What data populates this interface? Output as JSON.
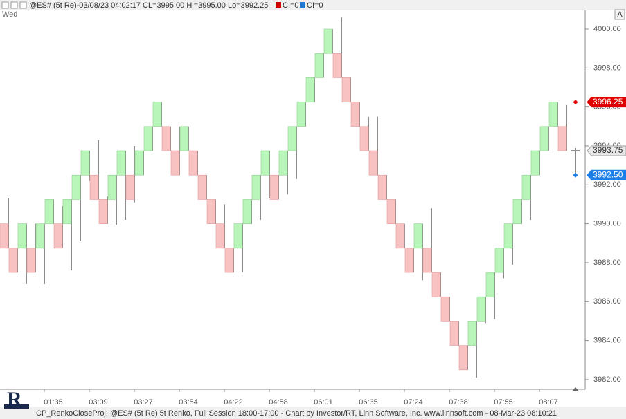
{
  "chart_data": {
    "type": "candlestick",
    "header": {
      "title": "@ES# (5t Re)-03/08/23 04:02:17 CL=3995.00 Hi=3995.00 Lo=3992.25",
      "items": [
        {
          "label": "CI=0",
          "color": "#d00000"
        },
        {
          "label": "CI=0",
          "color": "#1e78d8"
        }
      ]
    },
    "day_label": "Wed",
    "corner_button": "A",
    "footer": "CP_RenkoCloseProj: @ES# (5t Re) 5t Renko, Full Session 18:00-17:00 - Chart by Investor/RT, Linn Software, Inc. www.linnsoft.com - 08-Mar-23 08:10:21",
    "up_color": "#b8f5b8",
    "down_color": "#f8c2c2",
    "categories": [
      null,
      null,
      null,
      null,
      null,
      "01:35",
      null,
      null,
      null,
      null,
      "03:09",
      null,
      null,
      null,
      null,
      "03:27",
      null,
      null,
      null,
      null,
      "03:54",
      null,
      null,
      null,
      null,
      "04:22",
      null,
      null,
      null,
      null,
      "04:58",
      null,
      null,
      null,
      null,
      "06:01",
      null,
      null,
      null,
      null,
      "06:35",
      null,
      null,
      null,
      null,
      "07:24",
      null,
      null,
      null,
      null,
      "07:38",
      null,
      null,
      null,
      null,
      "07:55",
      null,
      null,
      null,
      null,
      "08:07",
      null,
      null,
      null
    ],
    "open": [
      3990,
      3988.75,
      3988.75,
      3988.75,
      3988.75,
      3990,
      3990,
      3990,
      3991.25,
      3992.5,
      3992.5,
      3991.25,
      3991.25,
      3992.5,
      3992.5,
      3992.5,
      3993.75,
      3995,
      3995,
      3993.75,
      3993.75,
      3993.75,
      3992.5,
      3991.25,
      3990,
      3988.75,
      3988.75,
      3990,
      3991.25,
      3992.5,
      3992.5,
      3992.5,
      3993.75,
      3995,
      3996.25,
      3997.5,
      3998.75,
      3998.75,
      3997.5,
      3996.25,
      3995,
      3993.75,
      3992.5,
      3991.25,
      3990,
      3988.75,
      3988.75,
      3988.75,
      3987.5,
      3986.25,
      3985,
      3983.75,
      3983.75,
      3985,
      3986.25,
      3987.5,
      3988.75,
      3990,
      3991.25,
      3992.5,
      3993.75,
      3995,
      3995,
      3993.75
    ],
    "close": [
      3988.75,
      3987.5,
      3990,
      3987.5,
      3990,
      3991.25,
      3988.75,
      3991.25,
      3992.5,
      3993.75,
      3991.25,
      3990,
      3992.5,
      3993.75,
      3991.25,
      3993.75,
      3995,
      3996.25,
      3993.75,
      3992.5,
      3995,
      3992.5,
      3991.25,
      3990,
      3988.75,
      3987.5,
      3990,
      3991.25,
      3992.5,
      3993.75,
      3991.25,
      3993.75,
      3995,
      3996.25,
      3997.5,
      3998.75,
      4000,
      3997.5,
      3996.25,
      3995,
      3993.75,
      3992.5,
      3991.25,
      3990,
      3988.75,
      3987.5,
      3990,
      3987.5,
      3986.25,
      3985,
      3983.75,
      3982.5,
      3985,
      3986.25,
      3987.5,
      3988.75,
      3990,
      3991.25,
      3992.5,
      3993.75,
      3995,
      3996.25,
      3993.75,
      3993.75
    ],
    "high": [
      3991.3,
      3988.75,
      3990,
      3990,
      3990,
      3991.25,
      3990.9,
      3991.25,
      3992.5,
      3993.75,
      3994.3,
      3991.4,
      3992.5,
      3993.75,
      3994,
      3993.75,
      3995,
      3996.25,
      3995,
      3995,
      3995,
      3993.75,
      3992.5,
      3991.25,
      3991,
      3988.75,
      3990,
      3991.25,
      3992.5,
      3993.75,
      3992.5,
      3993.75,
      3995,
      3996.25,
      3997.5,
      3998.75,
      4000,
      4000.6,
      3997.5,
      3996.25,
      3995.5,
      3995.5,
      3992.5,
      3991.25,
      3990,
      3988.75,
      3990,
      3990.8,
      3987.5,
      3986.25,
      3985,
      3983.75,
      3985,
      3986.25,
      3987.5,
      3988.75,
      3990,
      3991.25,
      3992.5,
      3993.75,
      3995,
      3996.25,
      3996.1,
      3993.9
    ],
    "low": [
      3988.75,
      3987.5,
      3986.9,
      3987.5,
      3986.9,
      3990,
      3988.75,
      3987.6,
      3989.1,
      3992.2,
      3991.25,
      3990,
      3989.95,
      3990.2,
      3991.1,
      3992.5,
      3993.75,
      3995,
      3993.75,
      3992.5,
      3993.75,
      3992.5,
      3991.25,
      3990,
      3988.75,
      3987.5,
      3987.5,
      3990,
      3990.2,
      3991.3,
      3991.25,
      3991.5,
      3992.3,
      3995,
      3996.25,
      3997.5,
      3998.75,
      3997.5,
      3996.25,
      3995,
      3993.75,
      3992.5,
      3991.25,
      3990,
      3988.75,
      3987.5,
      3987.1,
      3987.5,
      3986.25,
      3985,
      3983.75,
      3982.5,
      3982.1,
      3984.9,
      3985.1,
      3987.2,
      3987.9,
      3990,
      3990.2,
      3992.5,
      3993.75,
      3995,
      3993.75,
      3992.6
    ],
    "ylim": [
      3981.5,
      4000.96
    ],
    "yticks": [
      {
        "value": 3982,
        "label": "3982.00"
      },
      {
        "value": 3984,
        "label": "3984.00"
      },
      {
        "value": 3986,
        "label": "3986.00"
      },
      {
        "value": 3988,
        "label": "3988.00"
      },
      {
        "value": 3990,
        "label": "3990.00"
      },
      {
        "value": 3992,
        "label": "3992.00"
      },
      {
        "value": 3994,
        "label": "3994.00"
      },
      {
        "value": 3996,
        "label": "3996.00"
      },
      {
        "value": 3998,
        "label": "3998.00"
      },
      {
        "value": 4000,
        "label": "4000.00"
      }
    ],
    "projections": [
      {
        "value": 3996.25,
        "label": "3996.25",
        "color": "#e00000"
      },
      {
        "value": 3992.5,
        "label": "3992.50",
        "color": "#1e80e6"
      }
    ],
    "last_price": {
      "value": 3993.75,
      "label": "3993.75",
      "color": "#a0a0a0"
    }
  }
}
